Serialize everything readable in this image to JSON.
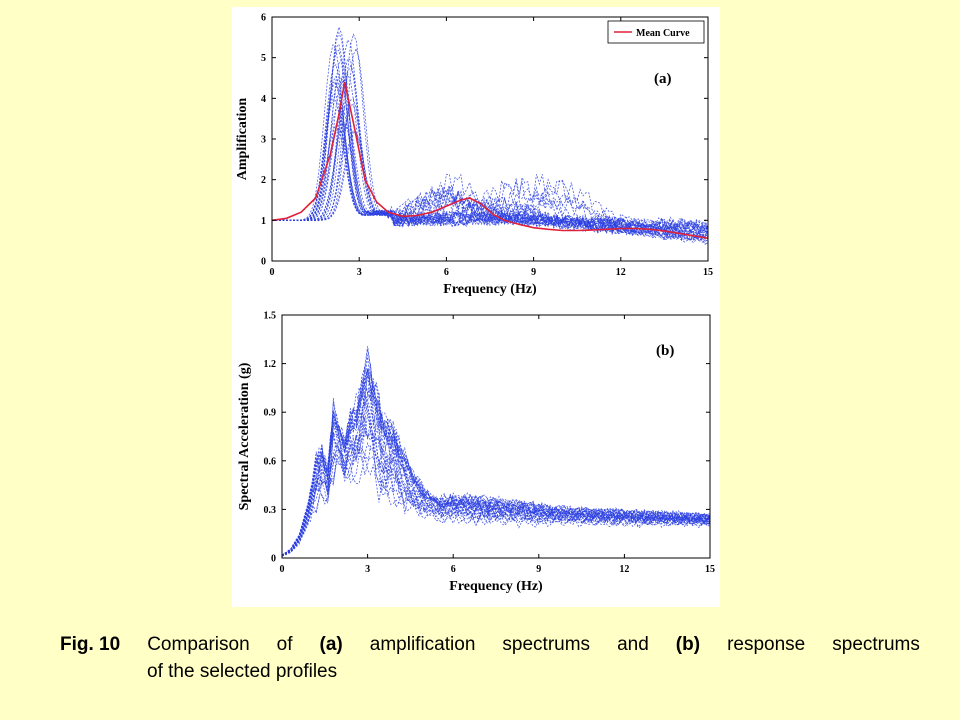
{
  "caption": {
    "fig_label": "Fig. 10",
    "words1": [
      "Comparison",
      "of",
      "(a)",
      "amplification",
      "spectrums",
      "and",
      "(b)",
      "response",
      "spectrums"
    ],
    "bold_words1": [
      "(a)",
      "(b)"
    ],
    "line2": "of the selected profiles"
  },
  "chart_data": [
    {
      "type": "line",
      "panel_label": "(a)",
      "xlabel": "Frequency (Hz)",
      "ylabel": "Amplification",
      "xlim": [
        0,
        15
      ],
      "ylim": [
        0,
        6
      ],
      "xticks": [
        "0",
        "3",
        "6",
        "9",
        "12",
        "15"
      ],
      "yticks": [
        "0",
        "1",
        "2",
        "3",
        "4",
        "5",
        "6"
      ],
      "legend": {
        "entries": [
          "Mean Curve"
        ],
        "placement": "top-right"
      },
      "grid": false,
      "colors": {
        "profiles": "#2b3fe0",
        "mean": "#e0213a"
      },
      "series": [
        {
          "name": "Mean Curve",
          "style": "solid",
          "x": [
            0,
            0.5,
            1,
            1.5,
            2,
            2.3,
            2.5,
            2.8,
            3.2,
            3.6,
            4,
            4.5,
            5,
            5.5,
            6,
            6.5,
            6.8,
            7.2,
            7.6,
            8,
            8.5,
            9,
            9.5,
            10,
            10.5,
            11,
            11.5,
            12,
            12.5,
            13,
            13.5,
            14,
            14.5,
            15
          ],
          "y": [
            1.0,
            1.05,
            1.2,
            1.55,
            2.6,
            3.6,
            4.4,
            3.4,
            2.0,
            1.45,
            1.2,
            1.1,
            1.12,
            1.2,
            1.35,
            1.5,
            1.55,
            1.4,
            1.15,
            1.0,
            0.9,
            0.82,
            0.78,
            0.75,
            0.75,
            0.76,
            0.78,
            0.8,
            0.8,
            0.78,
            0.74,
            0.68,
            0.62,
            0.56
          ]
        }
      ]
    },
    {
      "type": "line",
      "panel_label": "(b)",
      "xlabel": "Frequency (Hz)",
      "ylabel": "Spectral Acceleration (g)",
      "xlim": [
        0,
        15
      ],
      "ylim": [
        0,
        1.5
      ],
      "xticks": [
        "0",
        "3",
        "6",
        "9",
        "12",
        "15"
      ],
      "yticks": [
        "0",
        "0.3",
        "0.6",
        "0.9",
        "1.2",
        "1.5"
      ],
      "grid": false,
      "colors": {
        "profiles": "#2b3fe0"
      },
      "envelope": {
        "x": [
          0,
          0.3,
          0.6,
          0.9,
          1.2,
          1.4,
          1.6,
          1.8,
          2.0,
          2.2,
          2.4,
          2.6,
          2.8,
          3.0,
          3.2,
          3.5,
          4.0,
          4.5,
          5.0,
          5.5,
          6.0,
          7.0,
          8.0,
          9.0,
          10.0,
          11.0,
          12.0,
          13.0,
          14.0,
          15.0
        ],
        "low": [
          0.01,
          0.03,
          0.08,
          0.18,
          0.25,
          0.32,
          0.3,
          0.42,
          0.55,
          0.42,
          0.45,
          0.4,
          0.45,
          0.4,
          0.35,
          0.3,
          0.27,
          0.25,
          0.24,
          0.22,
          0.22,
          0.21,
          0.21,
          0.21,
          0.21,
          0.21,
          0.21,
          0.21,
          0.21,
          0.21
        ],
        "high": [
          0.02,
          0.06,
          0.15,
          0.35,
          0.68,
          0.75,
          0.6,
          1.03,
          0.85,
          0.8,
          0.95,
          1.05,
          1.2,
          1.35,
          1.25,
          1.0,
          0.85,
          0.6,
          0.45,
          0.38,
          0.4,
          0.38,
          0.36,
          0.33,
          0.31,
          0.3,
          0.29,
          0.28,
          0.27,
          0.26
        ]
      }
    }
  ]
}
